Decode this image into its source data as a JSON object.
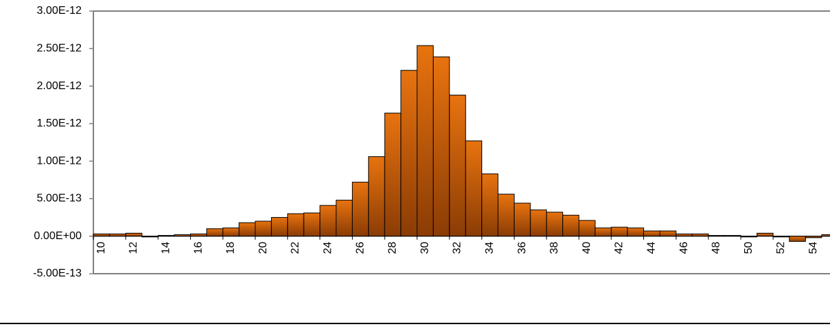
{
  "chart_data": {
    "type": "bar",
    "categories": [
      10,
      null,
      12,
      null,
      14,
      null,
      16,
      null,
      18,
      null,
      20,
      null,
      22,
      null,
      24,
      null,
      26,
      null,
      28,
      null,
      30,
      null,
      32,
      null,
      34,
      null,
      36,
      null,
      38,
      null,
      40,
      null,
      42,
      null,
      44,
      null,
      46,
      null,
      48,
      null,
      50,
      null,
      52,
      null,
      54,
      null
    ],
    "values": [
      3e-14,
      3e-14,
      4e-14,
      -1e-14,
      1e-14,
      2e-14,
      3e-14,
      1e-13,
      1.1e-13,
      1.8e-13,
      2e-13,
      2.5e-13,
      3e-13,
      3.1e-13,
      4.1e-13,
      4.8e-13,
      7.2e-13,
      1.06e-12,
      1.64e-12,
      2.21e-12,
      2.54e-12,
      2.39e-12,
      1.88e-12,
      1.27e-12,
      8.3e-13,
      5.6e-13,
      4.4e-13,
      3.5e-13,
      3.2e-13,
      2.8e-13,
      2.1e-13,
      1.1e-13,
      1.2e-13,
      1.1e-13,
      7e-14,
      7e-14,
      3e-14,
      3e-14,
      1e-14,
      1e-14,
      -1e-14,
      4e-14,
      -1e-14,
      -7e-14,
      -2e-14,
      2e-14
    ],
    "color": "#e46c0a",
    "ylim": [
      -5e-13,
      3e-12
    ],
    "yticks": [
      {
        "value": -5e-13,
        "label": "-5.00E-13"
      },
      {
        "value": 0,
        "label": "0.00E+00"
      },
      {
        "value": 5e-13,
        "label": "5.00E-13"
      },
      {
        "value": 1e-12,
        "label": "1.00E-12"
      },
      {
        "value": 1.5e-12,
        "label": "1.50E-12"
      },
      {
        "value": 2e-12,
        "label": "2.00E-12"
      },
      {
        "value": 2.5e-12,
        "label": "2.50E-12"
      },
      {
        "value": 3e-12,
        "label": "3.00E-12"
      }
    ]
  }
}
